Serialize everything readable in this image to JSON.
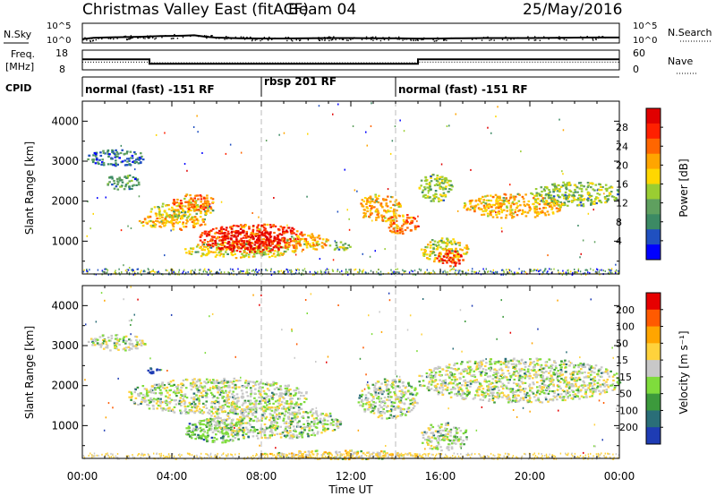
{
  "header": {
    "station": "Christmas Valley East (fitACF)",
    "beam": "Beam 04",
    "date": "25/May/2016"
  },
  "nsky_panel": {
    "left_label": "N.Sky",
    "right_label": "N.Search",
    "left_ticks": [
      "10^5",
      "10^0"
    ],
    "right_ticks": [
      "10^5",
      "10^0"
    ],
    "nsky_series": [
      [
        0,
        1.0
      ],
      [
        0.5,
        1.3
      ],
      [
        1,
        1.4
      ],
      [
        1.5,
        1.45
      ],
      [
        2,
        1.5
      ],
      [
        2.5,
        1.55
      ],
      [
        3,
        1.65
      ],
      [
        3.5,
        1.75
      ],
      [
        4,
        1.8
      ],
      [
        4.5,
        1.85
      ],
      [
        5,
        1.95
      ],
      [
        5.5,
        1.6
      ],
      [
        6,
        1.35
      ],
      [
        7,
        1.2
      ],
      [
        8,
        1.15
      ],
      [
        9,
        1.15
      ],
      [
        10,
        1.2
      ],
      [
        11,
        1.25
      ],
      [
        12,
        1.25
      ],
      [
        13,
        1.2
      ],
      [
        14,
        1.2
      ],
      [
        15,
        1.1
      ],
      [
        16,
        1.15
      ],
      [
        17,
        1.2
      ],
      [
        18,
        1.25
      ],
      [
        19,
        1.25
      ],
      [
        20,
        1.25
      ],
      [
        21,
        1.3
      ],
      [
        22,
        1.35
      ],
      [
        23,
        1.4
      ],
      [
        24,
        1.4
      ]
    ]
  },
  "freq_panel": {
    "left_label_top": "Freq.",
    "left_label_unit": "[MHz]",
    "left_ticks": [
      "18",
      "8"
    ],
    "right_ticks": [
      "60",
      "0"
    ],
    "right_label": "Nave",
    "freq_steps": [
      [
        0,
        13.5
      ],
      [
        3.0,
        13.5
      ],
      [
        3.0,
        10.3
      ],
      [
        15.0,
        10.3
      ],
      [
        15.0,
        13.5
      ],
      [
        24,
        13.5
      ]
    ],
    "nave_steps": [
      [
        0,
        11.5
      ],
      [
        3.0,
        11.5
      ],
      [
        3.0,
        11.0
      ],
      [
        15.0,
        11.0
      ],
      [
        15.0,
        11.5
      ],
      [
        24,
        11.5
      ]
    ]
  },
  "cpid_panel": {
    "label": "CPID",
    "segments": [
      {
        "start": 0,
        "text": "normal (fast) -151 RF"
      },
      {
        "start": 8,
        "text": "rbsp 201 RF"
      },
      {
        "start": 14,
        "text": "normal (fast) -151 RF"
      }
    ]
  },
  "power_panel": {
    "ylabel": "Slant Range [km]",
    "yticks": [
      "4000",
      "3000",
      "2000",
      "1000"
    ],
    "colorbar_label": "Power [dB]",
    "colorbar_ticks": [
      "28",
      "24",
      "20",
      "16",
      "12",
      "8",
      "4"
    ],
    "colors": [
      "#0000ff",
      "#2050c0",
      "#3c8a64",
      "#5fa05f",
      "#9acd32",
      "#ffd700",
      "#ffa500",
      "#ff6600",
      "#ff2000",
      "#e00000"
    ]
  },
  "velocity_panel": {
    "ylabel": "Slant Range [km]",
    "yticks": [
      "4000",
      "3000",
      "2000",
      "1000"
    ],
    "colorbar_label": "Velocity [m s⁻¹]",
    "colorbar_ticks": [
      "200",
      "100",
      "50",
      "15",
      "-15",
      "-50",
      "-100",
      "-200"
    ],
    "colors": [
      "#1e3cb4",
      "#2a6e78",
      "#3c9a3c",
      "#7fdc3c",
      "#c8c8c8",
      "#ffd23c",
      "#ffa500",
      "#ff5a00",
      "#e60000"
    ]
  },
  "x_axis": {
    "label": "Time UT",
    "ticks": [
      "00:00",
      "04:00",
      "08:00",
      "12:00",
      "16:00",
      "20:00",
      "00:00"
    ]
  },
  "chart_data": {
    "type": "heatmap",
    "x_unit": "hours UT",
    "xlim": [
      0,
      24
    ],
    "ylim_km": [
      180,
      4500
    ],
    "power_regions": [
      {
        "t0": 0.2,
        "t1": 2.8,
        "r0": 2900,
        "r1": 3300,
        "level": 2
      },
      {
        "t0": 1.0,
        "t1": 2.5,
        "r0": 2300,
        "r1": 2700,
        "level": 3
      },
      {
        "t0": 2.5,
        "t1": 5.5,
        "r0": 1300,
        "r1": 1700,
        "level": 6
      },
      {
        "t0": 3.0,
        "t1": 5.8,
        "r0": 1600,
        "r1": 2000,
        "level": 5
      },
      {
        "t0": 4.0,
        "t1": 6.0,
        "r0": 1800,
        "r1": 2200,
        "level": 7
      },
      {
        "t0": 4.5,
        "t1": 9.5,
        "r0": 600,
        "r1": 1000,
        "level": 5
      },
      {
        "t0": 5.2,
        "t1": 10.0,
        "r0": 750,
        "r1": 1450,
        "level": 8
      },
      {
        "t0": 6.0,
        "t1": 9.0,
        "r0": 800,
        "r1": 1300,
        "level": 9
      },
      {
        "t0": 9.0,
        "t1": 11.0,
        "r0": 800,
        "r1": 1200,
        "level": 6
      },
      {
        "t0": 11.0,
        "t1": 12.0,
        "r0": 800,
        "r1": 1000,
        "level": 4
      },
      {
        "t0": 12.3,
        "t1": 14.2,
        "r0": 1500,
        "r1": 2200,
        "level": 6
      },
      {
        "t0": 13.5,
        "t1": 15.0,
        "r0": 1200,
        "r1": 1700,
        "level": 7
      },
      {
        "t0": 15.0,
        "t1": 17.2,
        "r0": 500,
        "r1": 1100,
        "level": 5
      },
      {
        "t0": 15.8,
        "t1": 17.0,
        "r0": 400,
        "r1": 800,
        "level": 8
      },
      {
        "t0": 15.0,
        "t1": 16.5,
        "r0": 2000,
        "r1": 2700,
        "level": 4
      },
      {
        "t0": 17.0,
        "t1": 21.5,
        "r0": 1600,
        "r1": 2200,
        "level": 6
      },
      {
        "t0": 20.0,
        "t1": 24.0,
        "r0": 1900,
        "r1": 2500,
        "level": 4
      }
    ],
    "velocity_regions": [
      {
        "t0": 0.2,
        "t1": 2.8,
        "r0": 2900,
        "r1": 3300,
        "level": 4
      },
      {
        "t0": 2.8,
        "t1": 3.6,
        "r0": 2300,
        "r1": 2500,
        "level": 0
      },
      {
        "t0": 2.0,
        "t1": 10.0,
        "r0": 1300,
        "r1": 2200,
        "level": 4
      },
      {
        "t0": 4.5,
        "t1": 7.5,
        "r0": 600,
        "r1": 1200,
        "level": 3
      },
      {
        "t0": 5.5,
        "t1": 11.5,
        "r0": 700,
        "r1": 1500,
        "level": 4
      },
      {
        "t0": 12.3,
        "t1": 15.0,
        "r0": 1200,
        "r1": 2200,
        "level": 4
      },
      {
        "t0": 15.0,
        "t1": 17.2,
        "r0": 400,
        "r1": 1100,
        "level": 4
      },
      {
        "t0": 15.0,
        "t1": 24.0,
        "r0": 1600,
        "r1": 2700,
        "level": 4
      },
      {
        "t0": 8.0,
        "t1": 15.0,
        "r0": 180,
        "r1": 400,
        "level": 5
      }
    ]
  }
}
